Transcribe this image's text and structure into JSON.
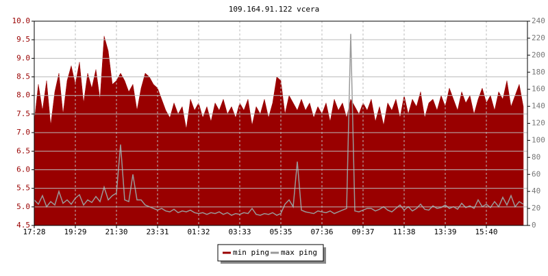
{
  "chart_data": {
    "type": "area-line",
    "title": "109.164.91.122 vcera",
    "categories": [
      "17:28",
      null,
      null,
      null,
      null,
      null,
      null,
      null,
      null,
      null,
      "19:29",
      null,
      null,
      null,
      null,
      null,
      null,
      null,
      null,
      null,
      "21:30",
      null,
      null,
      null,
      null,
      null,
      null,
      null,
      null,
      null,
      "23:31",
      null,
      null,
      null,
      null,
      null,
      null,
      null,
      null,
      null,
      "01:32",
      null,
      null,
      null,
      null,
      null,
      null,
      null,
      null,
      null,
      "03:33",
      null,
      null,
      null,
      null,
      null,
      null,
      null,
      null,
      null,
      "05:35",
      null,
      null,
      null,
      null,
      null,
      null,
      null,
      null,
      null,
      "07:36",
      null,
      null,
      null,
      null,
      null,
      null,
      null,
      null,
      null,
      "09:37",
      null,
      null,
      null,
      null,
      null,
      null,
      null,
      null,
      null,
      "11:38",
      null,
      null,
      null,
      null,
      null,
      null,
      null,
      null,
      null,
      "13:39",
      null,
      null,
      null,
      null,
      null,
      null,
      null,
      null,
      null,
      "15:40",
      null,
      null,
      null,
      null,
      null,
      null,
      null,
      null,
      null
    ],
    "series": [
      {
        "name": "min ping",
        "color": "#990000",
        "values": [
          7.3,
          8.3,
          7.6,
          8.4,
          7.2,
          8.1,
          8.6,
          7.5,
          8.4,
          8.8,
          8.3,
          8.9,
          7.8,
          8.6,
          8.2,
          8.7,
          7.9,
          9.6,
          9.2,
          8.3,
          8.4,
          8.6,
          8.4,
          8.1,
          8.3,
          7.6,
          8.2,
          8.6,
          8.5,
          8.3,
          8.2,
          7.9,
          7.6,
          7.4,
          7.8,
          7.5,
          7.7,
          7.1,
          7.9,
          7.6,
          7.8,
          7.4,
          7.7,
          7.3,
          7.8,
          7.6,
          7.9,
          7.5,
          7.7,
          7.4,
          7.8,
          7.6,
          7.9,
          7.2,
          7.7,
          7.5,
          7.9,
          7.4,
          7.8,
          8.5,
          8.4,
          7.5,
          8.0,
          7.8,
          7.6,
          7.9,
          7.6,
          7.8,
          7.4,
          7.7,
          7.5,
          7.8,
          7.3,
          7.9,
          7.6,
          7.8,
          7.4,
          7.9,
          7.7,
          7.5,
          7.8,
          7.6,
          7.9,
          7.3,
          7.7,
          7.2,
          7.8,
          7.6,
          7.9,
          7.4,
          8.0,
          7.5,
          7.9,
          7.7,
          8.1,
          7.4,
          7.8,
          7.9,
          7.6,
          8.0,
          7.7,
          8.2,
          7.9,
          7.6,
          8.1,
          7.8,
          8.0,
          7.5,
          7.9,
          8.2,
          7.8,
          8.0,
          7.6,
          8.1,
          7.9,
          8.4,
          7.7,
          8.0,
          8.3,
          7.7
        ]
      },
      {
        "name": "max ping",
        "color": "#999999",
        "axis": "y2",
        "values": [
          30,
          25,
          35,
          22,
          28,
          24,
          40,
          26,
          30,
          25,
          32,
          36,
          24,
          30,
          27,
          34,
          28,
          45,
          30,
          35,
          38,
          95,
          30,
          28,
          60,
          30,
          30,
          24,
          22,
          20,
          18,
          20,
          17,
          16,
          19,
          15,
          17,
          16,
          18,
          15,
          14,
          15,
          13,
          15,
          14,
          16,
          13,
          15,
          12,
          14,
          13,
          15,
          14,
          20,
          13,
          12,
          14,
          13,
          15,
          12,
          14,
          25,
          30,
          22,
          75,
          18,
          16,
          15,
          14,
          17,
          16,
          15,
          17,
          14,
          16,
          18,
          20,
          225,
          17,
          16,
          18,
          20,
          20,
          17,
          19,
          22,
          18,
          16,
          20,
          24,
          18,
          22,
          17,
          20,
          25,
          19,
          18,
          23,
          20,
          21,
          24,
          20,
          22,
          19,
          26,
          21,
          23,
          20,
          30,
          22,
          25,
          21,
          28,
          22,
          33,
          24,
          35,
          22,
          28,
          25
        ]
      }
    ],
    "ylim": [
      4.5,
      10
    ],
    "yticks": [
      4.5,
      {
        "value": 5,
        "label": "5.0"
      },
      5.5,
      {
        "value": 6,
        "label": "6.0"
      },
      6.5,
      {
        "value": 7,
        "label": "7.0"
      },
      7.5,
      {
        "value": 8,
        "label": "8.0"
      },
      8.5,
      {
        "value": 9,
        "label": "9.0"
      },
      9.5,
      {
        "value": 10,
        "label": "10.0"
      }
    ],
    "y2lim": [
      0,
      240
    ],
    "y2ticks": [
      0,
      20,
      40,
      60,
      80,
      100,
      120,
      140,
      160,
      180,
      200,
      220,
      240
    ],
    "grid": true,
    "legend": "bottom"
  }
}
